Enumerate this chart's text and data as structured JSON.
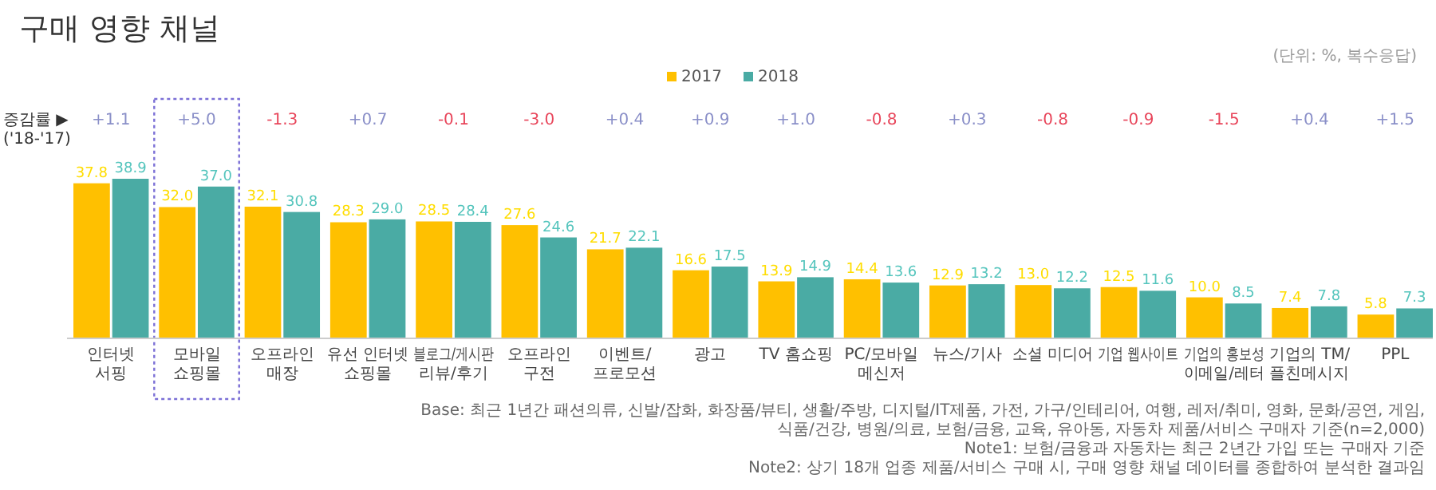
{
  "chart_data": {
    "type": "bar",
    "title": "구매 영향 채널",
    "subtitle": "(단위: %, 복수응답)",
    "categories": [
      "인터넷\n서핑",
      "모바일\n쇼핑몰",
      "오프라인\n매장",
      "유선 인터넷\n쇼핑몰",
      "블로그/게시판\n리뷰/후기",
      "오프라인\n구전",
      "이벤트/\n프로모션",
      "광고",
      "TV 홈쇼핑",
      "PC/모바일\n메신저",
      "뉴스/기사",
      "소셜 미디어",
      "기업 웹사이트",
      "기업의 홍보성\n이메일/레터",
      "기업의 TM/\n플친메시지",
      "PPL"
    ],
    "series": [
      {
        "name": "2017",
        "color": "#ffc000",
        "values": [
          37.8,
          32.0,
          32.1,
          28.3,
          28.5,
          27.6,
          21.7,
          16.6,
          13.9,
          14.4,
          12.9,
          13.0,
          12.5,
          10.0,
          7.4,
          5.8
        ],
        "value_labels": [
          "37.8",
          "32.0",
          "32.1",
          "28.3",
          "28.5",
          "27.6",
          "21.7",
          "16.6",
          "13.9",
          "14.4",
          "12.9",
          "13.0",
          "12.5",
          "10.0",
          "7.4",
          "5.8"
        ]
      },
      {
        "name": "2018",
        "color": "#4aaba4",
        "values": [
          38.9,
          37.0,
          30.8,
          29.0,
          28.4,
          24.6,
          22.1,
          17.5,
          14.9,
          13.6,
          13.2,
          12.2,
          11.6,
          8.5,
          7.8,
          7.3
        ],
        "value_labels": [
          "38.9",
          "37.0",
          "30.8",
          "29.0",
          "28.4",
          "24.6",
          "22.1",
          "17.5",
          "14.9",
          "13.6",
          "13.2",
          "12.2",
          "11.6",
          "8.5",
          "7.8",
          "7.3"
        ]
      }
    ],
    "legend": "top",
    "annotations": [
      "증감률 ▶\n('18-'17)",
      "+1.1",
      "+5.0",
      "-1.3",
      "+0.7",
      "-0.1",
      "-3.0",
      "+0.4",
      "+0.9",
      "+1.0",
      "-0.8",
      "+0.3",
      "-0.8",
      "-0.9",
      "-1.5",
      "+0.4",
      "+1.5",
      "Base: 최근 1년간 패션의류, 신발/잡화, 화장품/뷰티, 생활/주방, 디지털/IT제품, 가전, 가구/인테리어, 여행, 레저/취미, 영화, 문화/공연, 게임, 식품/건강, 병원/의료, 보험/금융, 교육, 유아동, 자동차 제품/서비스 구매자 기준(n=2,000)",
      "Note1: 보험/금융과 자동차는 최근 2년간 가입 또는 구매자 기준",
      "Note2: 상기 18개 업종 제품/서비스 구매 시, 구매 영향 채널 데이터를 종합하여 분석한 결과임"
    ]
  }
}
